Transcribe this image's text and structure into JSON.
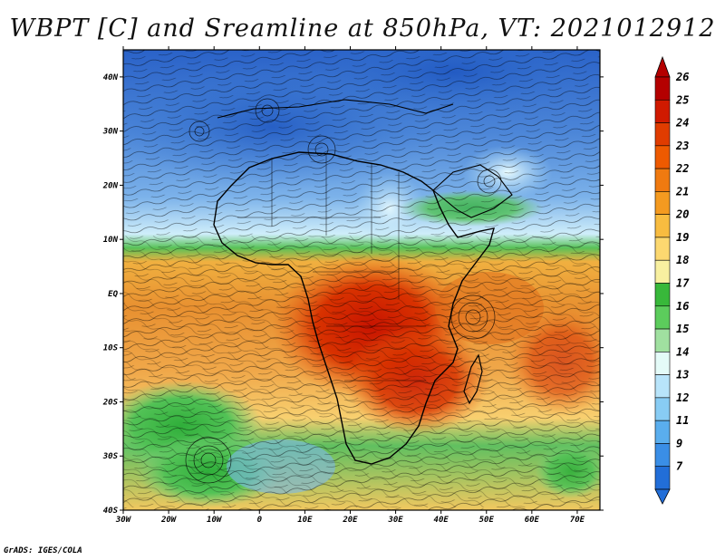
{
  "title": "WBPT [C] and Sreamline at 850hPa, VT: 2021012912",
  "credit": "GrADS: IGES/COLA",
  "map": {
    "lat_labels": [
      "40N",
      "30N",
      "20N",
      "10N",
      "EQ",
      "10S",
      "20S",
      "30S",
      "40S"
    ],
    "lon_labels": [
      "30W",
      "20W",
      "10W",
      "0",
      "10E",
      "20E",
      "30E",
      "40E",
      "50E",
      "60E",
      "70E"
    ],
    "lat_range": [
      -40,
      45
    ],
    "lon_range": [
      -30,
      75
    ]
  },
  "colorbar": {
    "labels": [
      "26",
      "25",
      "24",
      "23",
      "22",
      "21",
      "20",
      "19",
      "18",
      "17",
      "16",
      "15",
      "14",
      "13",
      "12",
      "11",
      "9",
      "7"
    ],
    "colors": [
      "#b40000",
      "#d01a00",
      "#e03c00",
      "#ee5a00",
      "#f07a10",
      "#f49a20",
      "#f8bc40",
      "#fcd870",
      "#f8f0a0",
      "#38b83a",
      "#5ccc5c",
      "#a0e0a0",
      "#e4fbf8",
      "#b8e4fa",
      "#88ccf4",
      "#5aaeee",
      "#3a8ee6",
      "#226ed8"
    ],
    "arrow_top": "#b40000",
    "arrow_bottom": "#226ed8"
  }
}
